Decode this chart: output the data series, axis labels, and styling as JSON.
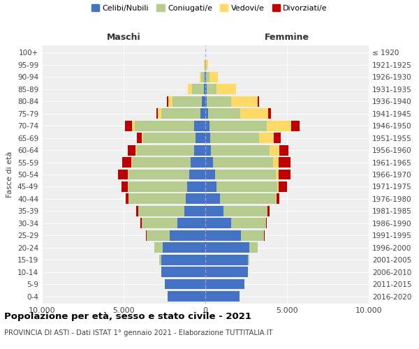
{
  "age_groups": [
    "0-4",
    "5-9",
    "10-14",
    "15-19",
    "20-24",
    "25-29",
    "30-34",
    "35-39",
    "40-44",
    "45-49",
    "50-54",
    "55-59",
    "60-64",
    "65-69",
    "70-74",
    "75-79",
    "80-84",
    "85-89",
    "90-94",
    "95-99",
    "100+"
  ],
  "birth_years": [
    "2016-2020",
    "2011-2015",
    "2006-2010",
    "2001-2005",
    "1996-2000",
    "1991-1995",
    "1986-1990",
    "1981-1985",
    "1976-1980",
    "1971-1975",
    "1966-1970",
    "1961-1965",
    "1956-1960",
    "1951-1955",
    "1946-1950",
    "1941-1945",
    "1936-1940",
    "1931-1935",
    "1926-1930",
    "1921-1925",
    "≤ 1920"
  ],
  "male": {
    "celibi": [
      2300,
      2500,
      2700,
      2700,
      2600,
      2200,
      1700,
      1300,
      1200,
      1100,
      1000,
      900,
      700,
      600,
      700,
      300,
      200,
      100,
      50,
      20,
      10
    ],
    "coniugati": [
      0,
      0,
      0,
      100,
      500,
      1400,
      2200,
      2800,
      3500,
      3600,
      3700,
      3600,
      3500,
      3200,
      3600,
      2400,
      1800,
      700,
      200,
      30,
      5
    ],
    "vedovi": [
      0,
      0,
      0,
      0,
      10,
      5,
      10,
      10,
      20,
      30,
      40,
      50,
      80,
      100,
      200,
      200,
      250,
      250,
      100,
      30,
      2
    ],
    "divorziati": [
      0,
      0,
      0,
      0,
      10,
      30,
      60,
      100,
      150,
      400,
      600,
      550,
      450,
      300,
      400,
      100,
      80,
      20,
      10,
      0,
      0
    ]
  },
  "female": {
    "nubili": [
      2100,
      2400,
      2600,
      2600,
      2700,
      2200,
      1600,
      1100,
      900,
      700,
      600,
      450,
      350,
      300,
      250,
      150,
      100,
      80,
      50,
      20,
      10
    ],
    "coniugate": [
      0,
      0,
      0,
      80,
      500,
      1400,
      2100,
      2700,
      3400,
      3700,
      3700,
      3700,
      3600,
      3000,
      3500,
      2000,
      1500,
      600,
      200,
      30,
      5
    ],
    "vedove": [
      0,
      0,
      0,
      0,
      5,
      5,
      10,
      20,
      50,
      100,
      200,
      350,
      600,
      900,
      1500,
      1700,
      1600,
      1200,
      500,
      100,
      5
    ],
    "divorziate": [
      0,
      0,
      0,
      0,
      10,
      30,
      60,
      100,
      200,
      500,
      700,
      700,
      550,
      400,
      500,
      150,
      80,
      20,
      10,
      0,
      0
    ]
  },
  "colors": {
    "celibi": "#4472c4",
    "coniugati": "#b5cc8e",
    "vedovi": "#ffd966",
    "divorziati": "#c00000"
  },
  "xlim": 10000,
  "title": "Popolazione per età, sesso e stato civile - 2021",
  "subtitle": "PROVINCIA DI ASTI - Dati ISTAT 1° gennaio 2021 - Elaborazione TUTTITALIA.IT",
  "xlabel_left": "Maschi",
  "xlabel_right": "Femmine",
  "ylabel": "Fasce di età",
  "legend_labels": [
    "Celibi/Nubili",
    "Coniugati/e",
    "Vedovi/e",
    "Divorziati/e"
  ],
  "xticks": [
    -10000,
    -5000,
    0,
    5000,
    10000
  ],
  "xtick_labels": [
    "10.000",
    "5.000",
    "0",
    "5.000",
    "10.000"
  ],
  "background_color": "#efefef"
}
